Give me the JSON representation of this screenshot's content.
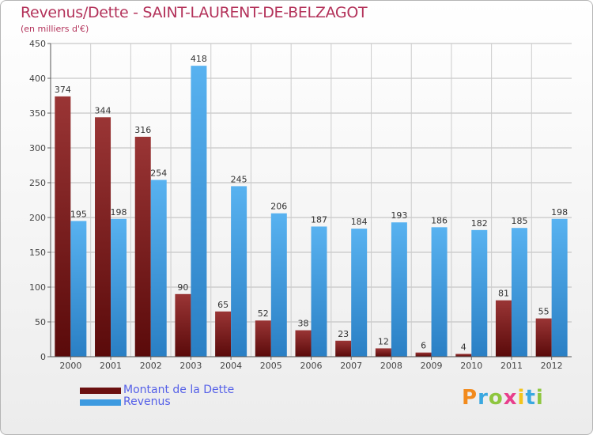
{
  "chart_data": {
    "type": "bar",
    "title": "Revenus/Dette - SAINT-LAURENT-DE-BELZAGOT",
    "subtitle": "(en milliers d'€)",
    "xlabel": "",
    "ylabel": "",
    "ylim": [
      0,
      450
    ],
    "yticks": [
      0,
      50,
      100,
      150,
      200,
      250,
      300,
      350,
      400,
      450
    ],
    "grid": true,
    "categories": [
      "2000",
      "2001",
      "2002",
      "2003",
      "2004",
      "2005",
      "2006",
      "2007",
      "2008",
      "2009",
      "2010",
      "2011",
      "2012"
    ],
    "series": [
      {
        "name": "Montant de la Dette",
        "color": "#7a1a1a",
        "values": [
          374,
          344,
          316,
          90,
          65,
          52,
          38,
          23,
          12,
          6,
          4,
          81,
          55
        ]
      },
      {
        "name": "Revenus",
        "color": "#3d9ae0",
        "values": [
          195,
          198,
          254,
          418,
          245,
          206,
          187,
          184,
          193,
          186,
          182,
          185,
          198
        ]
      }
    ],
    "legend_position": "bottom-left"
  },
  "logo": {
    "text": "Proxiti",
    "letter_colors": [
      "#f28a1c",
      "#3aa8e0",
      "#8ec63f",
      "#e83e8c",
      "#f2c41c",
      "#3aa8e0",
      "#8ec63f"
    ]
  }
}
